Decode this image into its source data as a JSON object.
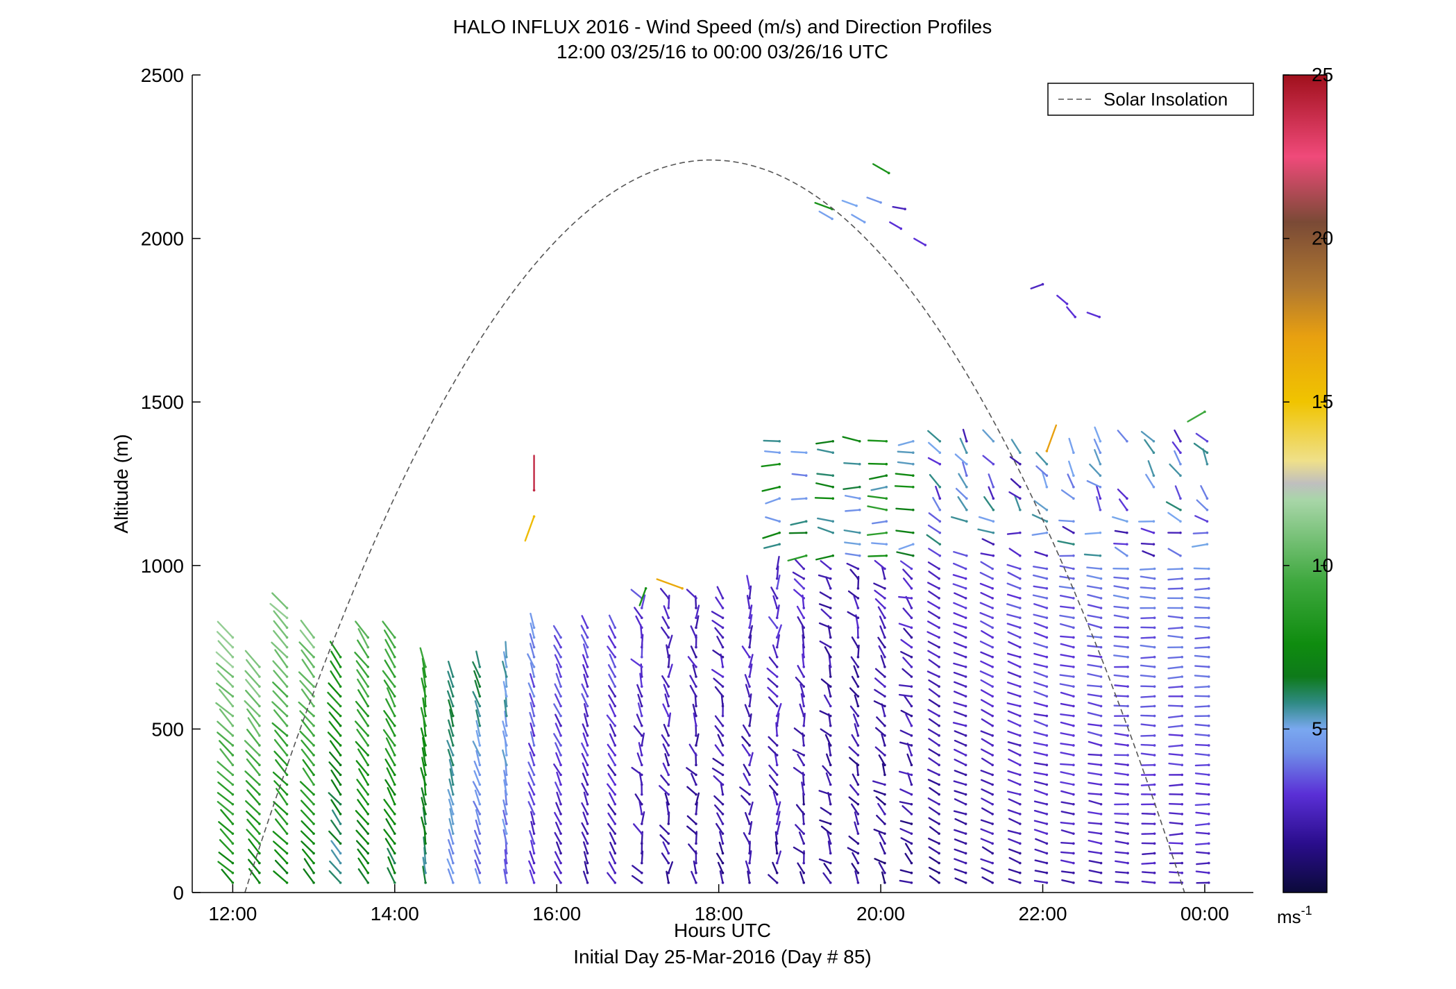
{
  "chart_data": {
    "type": "wind-profile",
    "title": "HALO INFLUX 2016 - Wind Speed (m/s) and Direction Profiles",
    "subtitle": "12:00 03/25/16 to 00:00 03/26/16  UTC",
    "xlabel": "Hours UTC",
    "footer": "Initial Day 25-Mar-2016 (Day # 85)",
    "ylabel": "Altitude (m)",
    "xlim": [
      11.5,
      24.6
    ],
    "ylim": [
      0,
      2500
    ],
    "x_ticks": [
      {
        "value": 12,
        "label": "12:00"
      },
      {
        "value": 14,
        "label": "14:00"
      },
      {
        "value": 16,
        "label": "16:00"
      },
      {
        "value": 18,
        "label": "18:00"
      },
      {
        "value": 20,
        "label": "20:00"
      },
      {
        "value": 22,
        "label": "22:00"
      },
      {
        "value": 24,
        "label": "00:00"
      }
    ],
    "y_ticks": [
      {
        "value": 0,
        "label": "0"
      },
      {
        "value": 500,
        "label": "500"
      },
      {
        "value": 1000,
        "label": "1000"
      },
      {
        "value": 1500,
        "label": "1500"
      },
      {
        "value": 2000,
        "label": "2000"
      },
      {
        "value": 2500,
        "label": "2500"
      }
    ],
    "legend": {
      "label": "Solar Insolation",
      "position": "top-right"
    },
    "solar_insolation": {
      "peak_hour": 17.9,
      "peak_altitude": 2240,
      "start_hour": 12.15,
      "end_hour": 23.75
    },
    "colorbar": {
      "range": [
        0,
        25
      ],
      "ticks": [
        {
          "value": 5,
          "label": "5"
        },
        {
          "value": 10,
          "label": "10"
        },
        {
          "value": 15,
          "label": "15"
        },
        {
          "value": 20,
          "label": "20"
        },
        {
          "value": 25,
          "label": "25"
        }
      ],
      "unit": "ms",
      "unit_sup": "-1",
      "stops": [
        {
          "v": 0,
          "c": "#0b0a3a"
        },
        {
          "v": 1.5,
          "c": "#2a0d8c"
        },
        {
          "v": 3,
          "c": "#5a2fd6"
        },
        {
          "v": 4.3,
          "c": "#6f8fe8"
        },
        {
          "v": 5,
          "c": "#7aa8f0"
        },
        {
          "v": 5.8,
          "c": "#2f8a84"
        },
        {
          "v": 6.6,
          "c": "#0e7a1a"
        },
        {
          "v": 7.6,
          "c": "#0f8c0f"
        },
        {
          "v": 9.5,
          "c": "#3ea83e"
        },
        {
          "v": 12,
          "c": "#a8d6a8"
        },
        {
          "v": 12.5,
          "c": "#bfbfbf"
        },
        {
          "v": 13.2,
          "c": "#efe08a"
        },
        {
          "v": 15,
          "c": "#f0c400"
        },
        {
          "v": 17,
          "c": "#e8a010"
        },
        {
          "v": 18.5,
          "c": "#b07830"
        },
        {
          "v": 20.5,
          "c": "#7a4a36"
        },
        {
          "v": 22.5,
          "c": "#f04a7a"
        },
        {
          "v": 25,
          "c": "#a0101c"
        }
      ]
    },
    "profiles": [
      {
        "t": 12.0,
        "top": 800,
        "speed": 9.8,
        "dir": 315
      },
      {
        "t": 12.33,
        "top": 700,
        "speed": 9.6,
        "dir": 320
      },
      {
        "t": 12.67,
        "top": 880,
        "speed": 9.4,
        "dir": 318
      },
      {
        "t": 13.0,
        "top": 800,
        "speed": 9.2,
        "dir": 320
      },
      {
        "t": 13.33,
        "top": 720,
        "speed": 7.2,
        "dir": 322
      },
      {
        "t": 13.67,
        "top": 800,
        "speed": 8.6,
        "dir": 325
      },
      {
        "t": 14.0,
        "top": 790,
        "speed": 8.3,
        "dir": 330
      },
      {
        "t": 14.38,
        "top": 710,
        "speed": 7.6,
        "dir": 350
      },
      {
        "t": 14.72,
        "top": 670,
        "speed": 5.4,
        "dir": 345
      },
      {
        "t": 15.05,
        "top": 700,
        "speed": 5.1,
        "dir": 340
      },
      {
        "t": 15.38,
        "top": 740,
        "speed": 4.8,
        "dir": 350
      },
      {
        "t": 15.72,
        "top": 820,
        "speed": 3.4,
        "dir": 340
      },
      {
        "t": 16.05,
        "top": 800,
        "speed": 3.0,
        "dir": 335
      },
      {
        "t": 16.38,
        "top": 820,
        "speed": 2.8,
        "dir": 340
      },
      {
        "t": 16.72,
        "top": 830,
        "speed": 2.8,
        "dir": 330
      },
      {
        "t": 17.05,
        "top": 900,
        "speed": 2.6,
        "dir": 340
      },
      {
        "t": 17.38,
        "top": 900,
        "speed": 2.4,
        "dir": 345
      },
      {
        "t": 17.72,
        "top": 900,
        "speed": 2.2,
        "dir": 340
      },
      {
        "t": 18.05,
        "top": 920,
        "speed": 2.2,
        "dir": 335
      },
      {
        "t": 18.38,
        "top": 940,
        "speed": 2.3,
        "dir": 340
      },
      {
        "t": 18.72,
        "top": 1000,
        "speed": 2.5,
        "dir": 345
      },
      {
        "t": 19.05,
        "top": 1000,
        "speed": 2.3,
        "dir": 330
      },
      {
        "t": 19.38,
        "top": 1000,
        "speed": 2.0,
        "dir": 320
      },
      {
        "t": 19.72,
        "top": 990,
        "speed": 2.0,
        "dir": 330
      },
      {
        "t": 20.05,
        "top": 990,
        "speed": 2.1,
        "dir": 320
      },
      {
        "t": 20.38,
        "top": 1000,
        "speed": 2.2,
        "dir": 310
      },
      {
        "t": 20.72,
        "top": 1000,
        "speed": 2.3,
        "dir": 300
      },
      {
        "t": 21.05,
        "top": 1000,
        "speed": 2.6,
        "dir": 290
      },
      {
        "t": 21.38,
        "top": 1000,
        "speed": 2.8,
        "dir": 295
      },
      {
        "t": 21.72,
        "top": 1000,
        "speed": 2.9,
        "dir": 290
      },
      {
        "t": 22.05,
        "top": 1000,
        "speed": 3.1,
        "dir": 285
      },
      {
        "t": 22.38,
        "top": 1000,
        "speed": 3.2,
        "dir": 280
      },
      {
        "t": 22.72,
        "top": 1000,
        "speed": 3.3,
        "dir": 280
      },
      {
        "t": 23.05,
        "top": 1000,
        "speed": 3.4,
        "dir": 275
      },
      {
        "t": 23.38,
        "top": 1000,
        "speed": 3.4,
        "dir": 272
      },
      {
        "t": 23.72,
        "top": 1000,
        "speed": 3.5,
        "dir": 270
      },
      {
        "t": 24.05,
        "top": 1000,
        "speed": 3.6,
        "dir": 270
      }
    ],
    "upper_barbs": [
      {
        "t": 15.72,
        "alt": 1230,
        "speed": 24,
        "dir": 0
      },
      {
        "t": 15.72,
        "alt": 1150,
        "speed": 15.5,
        "dir": 200
      },
      {
        "t": 17.1,
        "alt": 930,
        "speed": 8,
        "dir": 200
      },
      {
        "t": 17.55,
        "alt": 930,
        "speed": 16.5,
        "dir": 290
      },
      {
        "t": 20.1,
        "alt": 2200,
        "speed": 8,
        "dir": 300
      },
      {
        "t": 19.4,
        "alt": 2090,
        "speed": 8,
        "dir": 290
      },
      {
        "t": 19.7,
        "alt": 2100,
        "speed": 5,
        "dir": 290
      },
      {
        "t": 20.0,
        "alt": 2110,
        "speed": 4.5,
        "dir": 290
      },
      {
        "t": 20.3,
        "alt": 2090,
        "speed": 2.5,
        "dir": 280
      },
      {
        "t": 19.4,
        "alt": 2060,
        "speed": 4.8,
        "dir": 300
      },
      {
        "t": 19.8,
        "alt": 2050,
        "speed": 4.8,
        "dir": 300
      },
      {
        "t": 20.25,
        "alt": 2030,
        "speed": 3,
        "dir": 300
      },
      {
        "t": 20.55,
        "alt": 1980,
        "speed": 3,
        "dir": 300
      },
      {
        "t": 22.0,
        "alt": 1860,
        "speed": 2.6,
        "dir": 250
      },
      {
        "t": 22.3,
        "alt": 1800,
        "speed": 3,
        "dir": 310
      },
      {
        "t": 22.4,
        "alt": 1760,
        "speed": 3,
        "dir": 320
      },
      {
        "t": 22.7,
        "alt": 1760,
        "speed": 3,
        "dir": 290
      },
      {
        "t": 24.0,
        "alt": 1470,
        "speed": 9.5,
        "dir": 240
      },
      {
        "t": 22.05,
        "alt": 1350,
        "speed": 17,
        "dir": 20
      }
    ],
    "upper_band": {
      "t_start": 18.75,
      "t_end": 24.05,
      "alt_low": 1030,
      "alt_high": 1400
    }
  }
}
